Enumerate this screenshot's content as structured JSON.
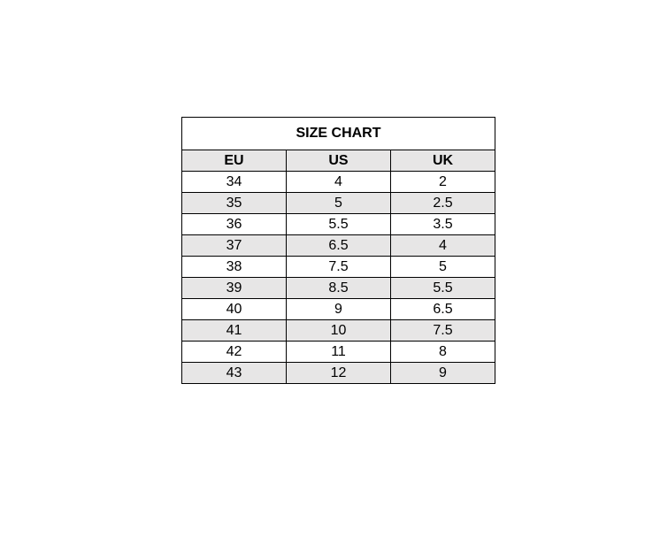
{
  "title": "SIZE CHART",
  "headers": [
    "EU",
    "US",
    "UK"
  ],
  "rows": [
    [
      "34",
      "4",
      "2"
    ],
    [
      "35",
      "5",
      "2.5"
    ],
    [
      "36",
      "5.5",
      "3.5"
    ],
    [
      "37",
      "6.5",
      "4"
    ],
    [
      "38",
      "7.5",
      "5"
    ],
    [
      "39",
      "8.5",
      "5.5"
    ],
    [
      "40",
      "9",
      "6.5"
    ],
    [
      "41",
      "10",
      "7.5"
    ],
    [
      "42",
      "11",
      "8"
    ],
    [
      "43",
      "12",
      "9"
    ]
  ],
  "colors": {
    "shade": "#E7E6E6",
    "border": "#000000"
  }
}
